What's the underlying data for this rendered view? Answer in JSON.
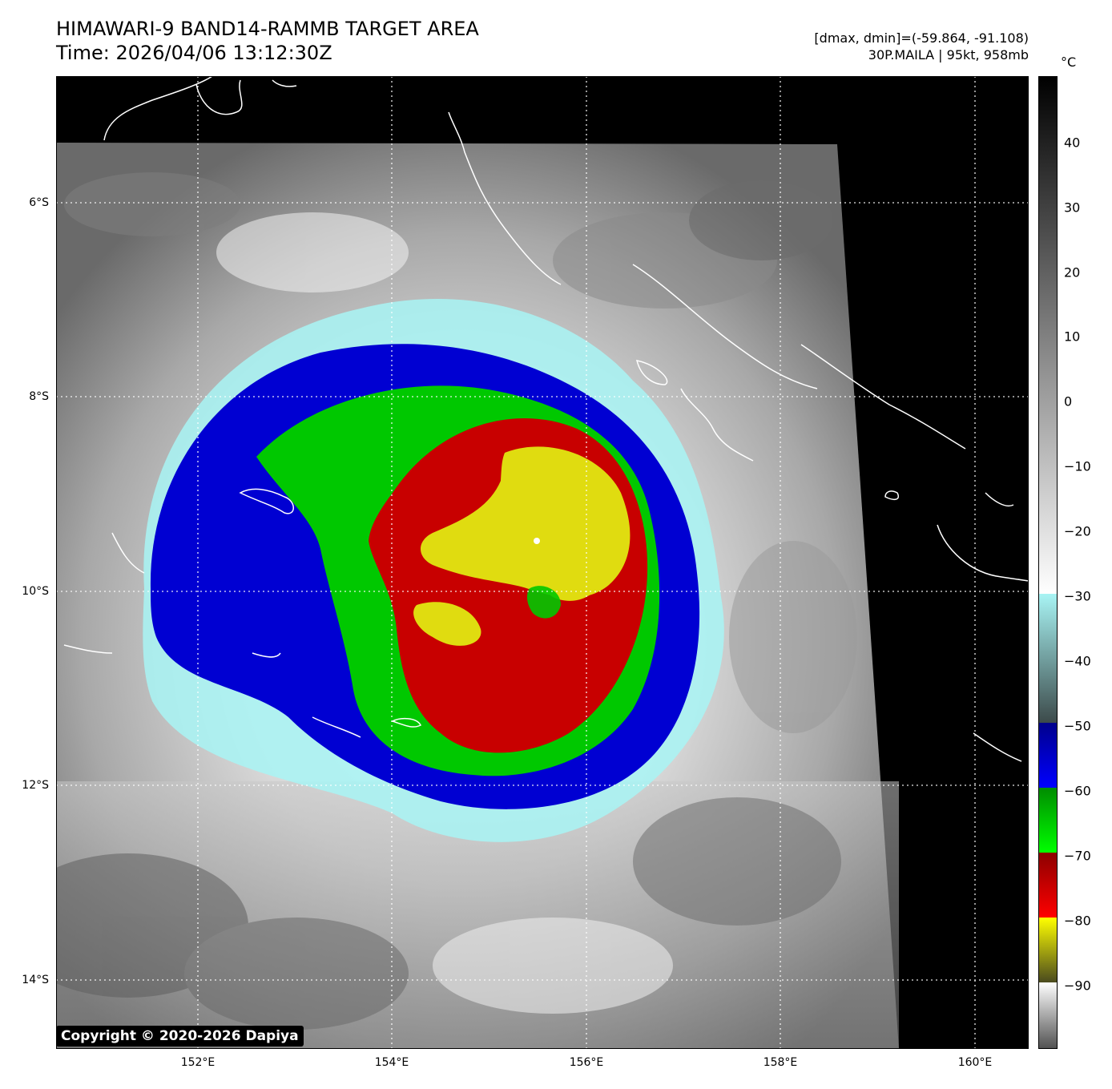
{
  "title": {
    "line1": "HIMAWARI-9 BAND14-RAMMB TARGET AREA",
    "line2": "Time: 2026/04/06 13:12:30Z"
  },
  "meta": {
    "range_line": "[dmax, dmin]=(-59.864, -91.108)",
    "storm_line": "30P.MAILA | 95kt, 958mb"
  },
  "map": {
    "lat_labels": [
      "6°S",
      "8°S",
      "10°S",
      "12°S",
      "14°S"
    ],
    "lon_labels": [
      "152°E",
      "154°E",
      "156°E",
      "158°E",
      "160°E"
    ]
  },
  "colorbar": {
    "unit": "°C",
    "labels": [
      "40",
      "30",
      "20",
      "10",
      "0",
      "−10",
      "−20",
      "−30",
      "−40",
      "−50",
      "−60",
      "−70",
      "−80",
      "−90"
    ],
    "colors": {
      "cyan": "#a8f4f4",
      "blue": "#0000d2",
      "green": "#00c800",
      "red": "#c80000",
      "yellow": "#e6e600"
    }
  },
  "copyright": "Copyright © 2020-2026 Dapiya"
}
